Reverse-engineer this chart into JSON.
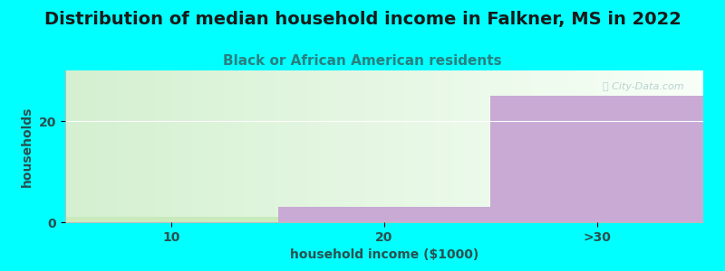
{
  "title": "Distribution of median household income in Falkner, MS in 2022",
  "subtitle": "Black or African American residents",
  "xlabel": "household income ($1000)",
  "ylabel": "households",
  "categories": [
    "10",
    "20",
    ">30"
  ],
  "values": [
    1,
    3,
    25
  ],
  "bar_colors": [
    "#c8eabc",
    "#c9aad4",
    "#c9aad4"
  ],
  "plot_bg_left": "#d4f0d0",
  "plot_bg_right": "#f8fff8",
  "fig_bg_color": "#00ffff",
  "title_color": "#1a1a1a",
  "subtitle_color": "#2a8080",
  "axis_label_color": "#2a5050",
  "tick_label_color": "#2a5050",
  "gridline_color": "#ffffff",
  "ylim": [
    0,
    30
  ],
  "yticks": [
    0,
    20
  ],
  "watermark": "ⓘ City-Data.com",
  "title_fontsize": 14,
  "subtitle_fontsize": 11,
  "label_fontsize": 10
}
